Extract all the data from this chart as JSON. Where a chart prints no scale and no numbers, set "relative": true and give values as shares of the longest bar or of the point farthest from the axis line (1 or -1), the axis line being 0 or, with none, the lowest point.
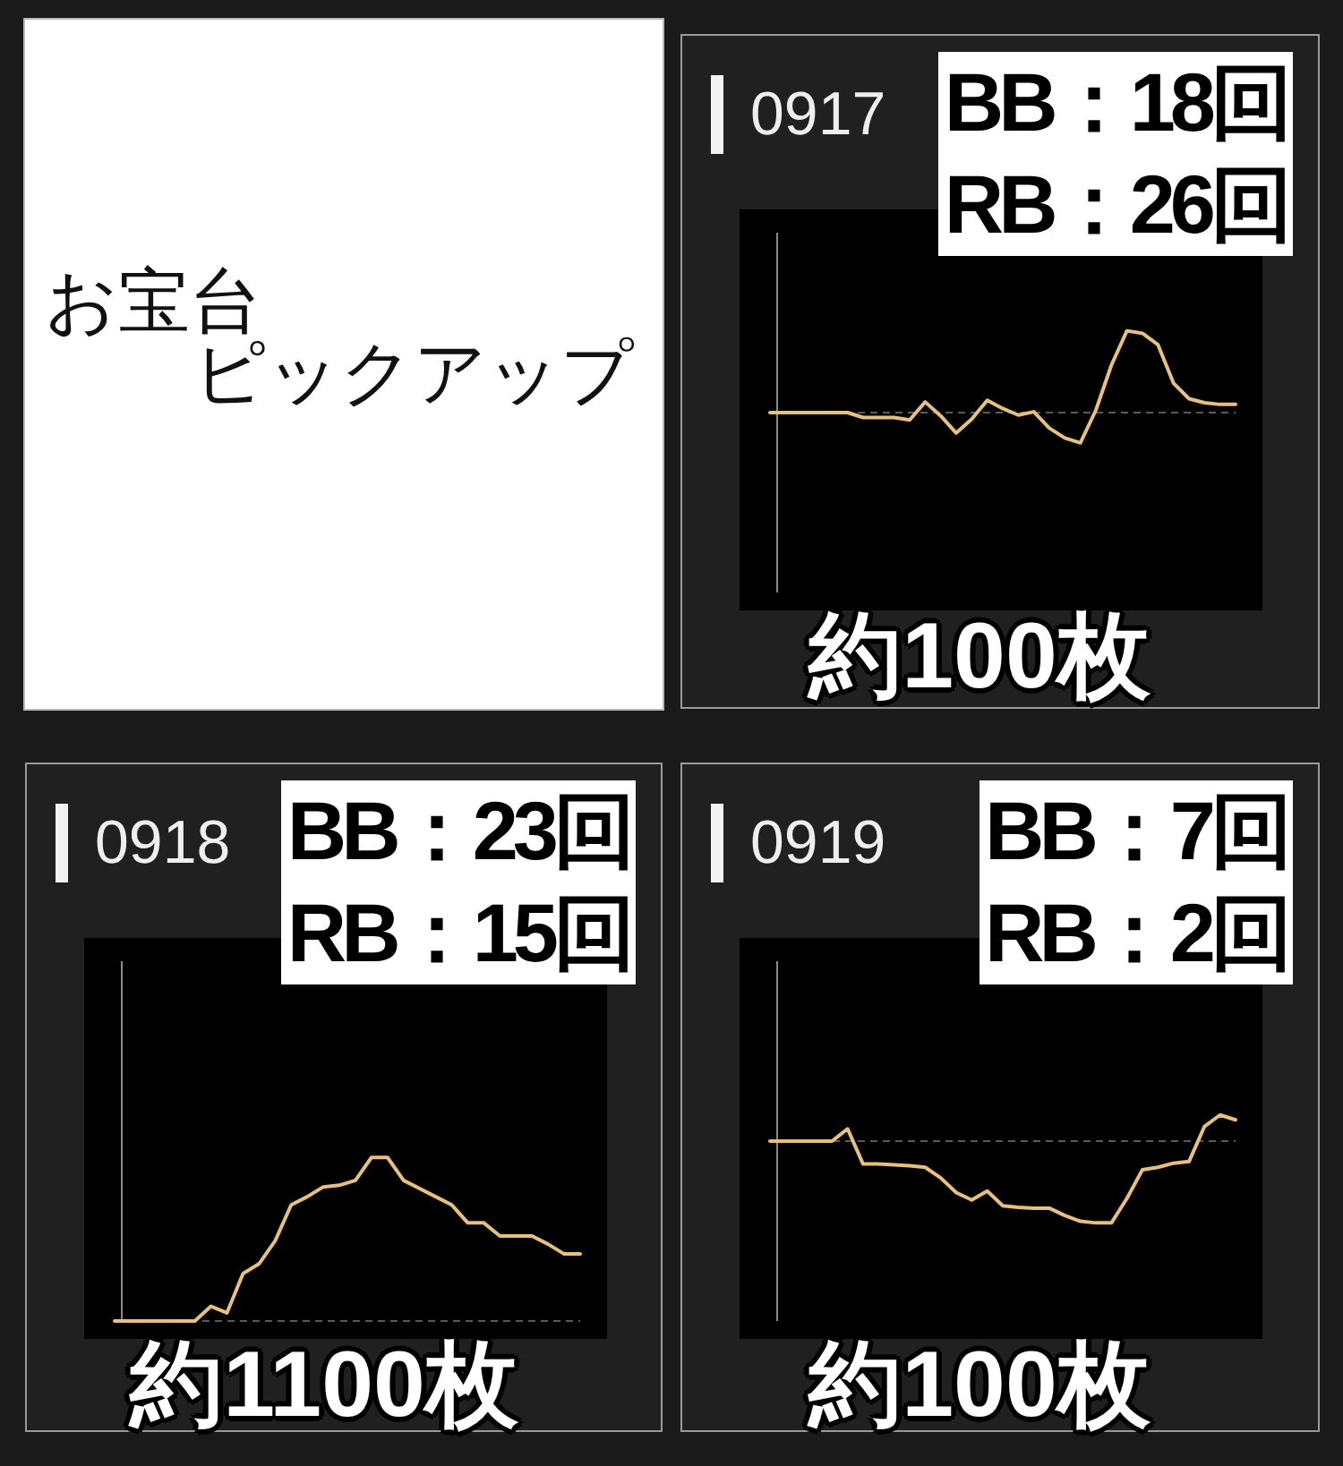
{
  "chart_data": [
    {
      "type": "other",
      "title": "お宝台",
      "subtitle": "ピックアップ"
    },
    {
      "type": "line",
      "title": "0917",
      "annotations": [
        "BB：18回",
        "RB：26回",
        "約100枚"
      ],
      "categories": [
        null,
        null,
        null,
        null,
        null,
        null,
        null,
        null,
        null,
        null,
        null,
        null,
        null,
        null,
        null,
        null,
        null,
        null,
        null,
        null,
        null,
        null,
        null,
        null,
        null,
        null,
        null,
        null,
        null,
        null,
        null
      ],
      "relative": true,
      "series": [
        {
          "color": "#e8c07e",
          "values": [
            0,
            0,
            0,
            0,
            0,
            0,
            -0.06,
            -0.06,
            -0.06,
            -0.09,
            0.13,
            -0.04,
            -0.25,
            -0.08,
            0.15,
            0.05,
            -0.03,
            0.01,
            -0.19,
            -0.31,
            -0.37,
            0.03,
            0.58,
            1,
            0.97,
            0.83,
            0.36,
            0.17,
            0.12,
            0.1,
            0.1
          ]
        }
      ],
      "ref_lines": [
        {
          "axis": "y",
          "value": 0,
          "line_style": "dashed",
          "color": "#5a5a5a"
        }
      ]
    },
    {
      "type": "line",
      "title": "0918",
      "annotations": [
        "BB：23回",
        "RB：15回",
        "約1100枚"
      ],
      "categories": [
        null,
        null,
        null,
        null,
        null,
        null,
        null,
        null,
        null,
        null,
        null,
        null,
        null,
        null,
        null,
        null,
        null,
        null,
        null,
        null,
        null,
        null,
        null,
        null,
        null,
        null,
        null,
        null,
        null,
        null
      ],
      "relative": true,
      "series": [
        {
          "color": "#e8c07e",
          "values": [
            0,
            0,
            0,
            0,
            0,
            0,
            0.09,
            0.05,
            0.29,
            0.35,
            0.49,
            0.71,
            0.76,
            0.82,
            0.83,
            0.86,
            1,
            1,
            0.86,
            0.81,
            0.76,
            0.71,
            0.6,
            0.6,
            0.52,
            0.52,
            0.52,
            0.47,
            0.41,
            0.41
          ]
        }
      ],
      "ref_lines": [
        {
          "axis": "y",
          "value": 0,
          "line_style": "dashed",
          "color": "#5a5a5a"
        }
      ]
    },
    {
      "type": "line",
      "title": "0919",
      "annotations": [
        "BB：7回",
        "RB：2回",
        "約100枚"
      ],
      "categories": [
        null,
        null,
        null,
        null,
        null,
        null,
        null,
        null,
        null,
        null,
        null,
        null,
        null,
        null,
        null,
        null,
        null,
        null,
        null,
        null,
        null,
        null,
        null,
        null,
        null,
        null,
        null,
        null,
        null,
        null,
        null
      ],
      "relative": true,
      "series": [
        {
          "color": "#e8c07e",
          "values": [
            0,
            0,
            0,
            0,
            0,
            0.15,
            -0.28,
            -0.28,
            -0.29,
            -0.3,
            -0.32,
            -0.45,
            -0.63,
            -0.72,
            -0.61,
            -0.79,
            -0.81,
            -0.82,
            -0.82,
            -0.91,
            -0.98,
            -1,
            -1,
            -0.7,
            -0.35,
            -0.32,
            -0.27,
            -0.25,
            0.18,
            0.32,
            0.26
          ]
        }
      ],
      "ref_lines": [
        {
          "axis": "y",
          "value": 0,
          "line_style": "dashed",
          "color": "#5a5a5a"
        }
      ]
    }
  ]
}
